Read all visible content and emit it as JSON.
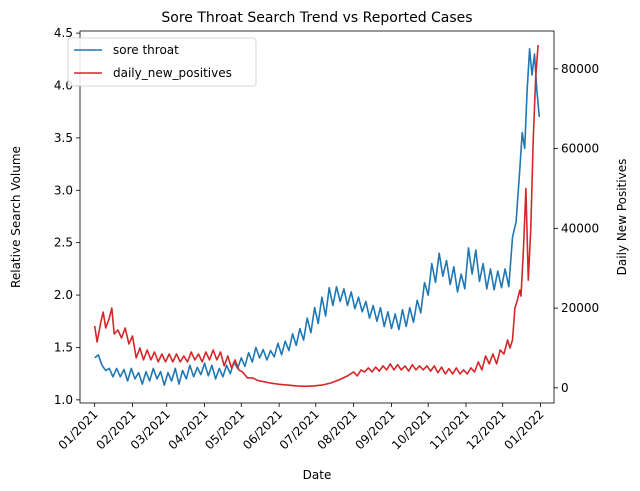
{
  "chart_data": {
    "type": "line",
    "title": "Sore Throat Search Trend vs Reported Cases",
    "xlabel": "Date",
    "ylabel_left": "Relative Search Volume",
    "ylabel_right": "Daily New Positives",
    "x_range": [
      "2020-12-20",
      "2022-01-12"
    ],
    "x_ticks": [
      {
        "date": "2021-01-01",
        "label": "01/2021"
      },
      {
        "date": "2021-02-01",
        "label": "02/2021"
      },
      {
        "date": "2021-03-01",
        "label": "03/2021"
      },
      {
        "date": "2021-04-01",
        "label": "04/2021"
      },
      {
        "date": "2021-05-01",
        "label": "05/2021"
      },
      {
        "date": "2021-06-01",
        "label": "06/2021"
      },
      {
        "date": "2021-07-01",
        "label": "07/2021"
      },
      {
        "date": "2021-08-01",
        "label": "08/2021"
      },
      {
        "date": "2021-09-01",
        "label": "09/2021"
      },
      {
        "date": "2021-10-01",
        "label": "10/2021"
      },
      {
        "date": "2021-11-01",
        "label": "11/2021"
      },
      {
        "date": "2021-12-01",
        "label": "12/2021"
      },
      {
        "date": "2022-01-01",
        "label": "01/2022"
      }
    ],
    "y_left": {
      "range": [
        0.97,
        4.52
      ],
      "ticks": [
        "1.0",
        "1.5",
        "2.0",
        "2.5",
        "3.0",
        "3.5",
        "4.0",
        "4.5"
      ]
    },
    "y_right": {
      "range": [
        -3800,
        89500
      ],
      "ticks": [
        "0",
        "20000",
        "40000",
        "60000",
        "80000"
      ]
    },
    "grid": false,
    "legend_position": "top-left",
    "series": [
      {
        "name": "sore throat",
        "axis": "left",
        "color": "#1f77b4",
        "points": [
          [
            "2021-01-01",
            1.4
          ],
          [
            "2021-01-04",
            1.43
          ],
          [
            "2021-01-07",
            1.33
          ],
          [
            "2021-01-10",
            1.28
          ],
          [
            "2021-01-13",
            1.3
          ],
          [
            "2021-01-16",
            1.22
          ],
          [
            "2021-01-19",
            1.3
          ],
          [
            "2021-01-22",
            1.22
          ],
          [
            "2021-01-25",
            1.29
          ],
          [
            "2021-01-28",
            1.18
          ],
          [
            "2021-01-31",
            1.3
          ],
          [
            "2021-02-03",
            1.2
          ],
          [
            "2021-02-06",
            1.26
          ],
          [
            "2021-02-09",
            1.15
          ],
          [
            "2021-02-12",
            1.27
          ],
          [
            "2021-02-15",
            1.18
          ],
          [
            "2021-02-18",
            1.3
          ],
          [
            "2021-02-21",
            1.2
          ],
          [
            "2021-02-24",
            1.27
          ],
          [
            "2021-02-27",
            1.14
          ],
          [
            "2021-03-02",
            1.26
          ],
          [
            "2021-03-05",
            1.18
          ],
          [
            "2021-03-08",
            1.3
          ],
          [
            "2021-03-11",
            1.15
          ],
          [
            "2021-03-14",
            1.28
          ],
          [
            "2021-03-17",
            1.2
          ],
          [
            "2021-03-20",
            1.33
          ],
          [
            "2021-03-23",
            1.22
          ],
          [
            "2021-03-26",
            1.31
          ],
          [
            "2021-03-29",
            1.24
          ],
          [
            "2021-04-01",
            1.35
          ],
          [
            "2021-04-04",
            1.23
          ],
          [
            "2021-04-07",
            1.33
          ],
          [
            "2021-04-10",
            1.2
          ],
          [
            "2021-04-13",
            1.3
          ],
          [
            "2021-04-16",
            1.22
          ],
          [
            "2021-04-19",
            1.33
          ],
          [
            "2021-04-22",
            1.25
          ],
          [
            "2021-04-25",
            1.36
          ],
          [
            "2021-04-28",
            1.3
          ],
          [
            "2021-05-01",
            1.4
          ],
          [
            "2021-05-04",
            1.32
          ],
          [
            "2021-05-07",
            1.45
          ],
          [
            "2021-05-10",
            1.36
          ],
          [
            "2021-05-13",
            1.5
          ],
          [
            "2021-05-16",
            1.4
          ],
          [
            "2021-05-19",
            1.48
          ],
          [
            "2021-05-22",
            1.38
          ],
          [
            "2021-05-25",
            1.47
          ],
          [
            "2021-05-28",
            1.41
          ],
          [
            "2021-05-31",
            1.54
          ],
          [
            "2021-06-03",
            1.43
          ],
          [
            "2021-06-06",
            1.56
          ],
          [
            "2021-06-09",
            1.47
          ],
          [
            "2021-06-12",
            1.63
          ],
          [
            "2021-06-15",
            1.52
          ],
          [
            "2021-06-18",
            1.68
          ],
          [
            "2021-06-21",
            1.57
          ],
          [
            "2021-06-24",
            1.78
          ],
          [
            "2021-06-27",
            1.64
          ],
          [
            "2021-06-30",
            1.88
          ],
          [
            "2021-07-03",
            1.73
          ],
          [
            "2021-07-06",
            1.98
          ],
          [
            "2021-07-09",
            1.8
          ],
          [
            "2021-07-12",
            2.07
          ],
          [
            "2021-07-15",
            1.9
          ],
          [
            "2021-07-18",
            2.08
          ],
          [
            "2021-07-21",
            1.94
          ],
          [
            "2021-07-24",
            2.06
          ],
          [
            "2021-07-27",
            1.9
          ],
          [
            "2021-07-30",
            2.03
          ],
          [
            "2021-08-02",
            1.87
          ],
          [
            "2021-08-05",
            1.98
          ],
          [
            "2021-08-08",
            1.84
          ],
          [
            "2021-08-11",
            1.94
          ],
          [
            "2021-08-14",
            1.78
          ],
          [
            "2021-08-17",
            1.9
          ],
          [
            "2021-08-20",
            1.75
          ],
          [
            "2021-08-23",
            1.88
          ],
          [
            "2021-08-26",
            1.7
          ],
          [
            "2021-08-29",
            1.84
          ],
          [
            "2021-09-01",
            1.68
          ],
          [
            "2021-09-04",
            1.82
          ],
          [
            "2021-09-07",
            1.67
          ],
          [
            "2021-09-10",
            1.86
          ],
          [
            "2021-09-13",
            1.7
          ],
          [
            "2021-09-16",
            1.88
          ],
          [
            "2021-09-19",
            1.74
          ],
          [
            "2021-09-22",
            1.95
          ],
          [
            "2021-09-25",
            1.83
          ],
          [
            "2021-09-28",
            2.12
          ],
          [
            "2021-10-01",
            2.0
          ],
          [
            "2021-10-04",
            2.3
          ],
          [
            "2021-10-07",
            2.12
          ],
          [
            "2021-10-10",
            2.4
          ],
          [
            "2021-10-13",
            2.18
          ],
          [
            "2021-10-16",
            2.33
          ],
          [
            "2021-10-19",
            2.1
          ],
          [
            "2021-10-22",
            2.27
          ],
          [
            "2021-10-25",
            2.03
          ],
          [
            "2021-10-28",
            2.2
          ],
          [
            "2021-10-31",
            2.06
          ],
          [
            "2021-11-03",
            2.45
          ],
          [
            "2021-11-06",
            2.2
          ],
          [
            "2021-11-09",
            2.43
          ],
          [
            "2021-11-12",
            2.13
          ],
          [
            "2021-11-15",
            2.3
          ],
          [
            "2021-11-18",
            2.06
          ],
          [
            "2021-11-21",
            2.25
          ],
          [
            "2021-11-24",
            2.05
          ],
          [
            "2021-11-27",
            2.23
          ],
          [
            "2021-11-30",
            2.07
          ],
          [
            "2021-12-03",
            2.25
          ],
          [
            "2021-12-06",
            2.08
          ],
          [
            "2021-12-09",
            2.55
          ],
          [
            "2021-12-12",
            2.7
          ],
          [
            "2021-12-15",
            3.2
          ],
          [
            "2021-12-17",
            3.55
          ],
          [
            "2021-12-19",
            3.4
          ],
          [
            "2021-12-21",
            3.95
          ],
          [
            "2021-12-23",
            4.35
          ],
          [
            "2021-12-25",
            4.1
          ],
          [
            "2021-12-27",
            4.3
          ],
          [
            "2021-12-29",
            3.95
          ],
          [
            "2021-12-31",
            3.7
          ]
        ]
      },
      {
        "name": "daily_new_positives",
        "axis": "right",
        "color": "#d62728",
        "points": [
          [
            "2021-01-01",
            15500
          ],
          [
            "2021-01-03",
            11500
          ],
          [
            "2021-01-06",
            16500
          ],
          [
            "2021-01-08",
            19000
          ],
          [
            "2021-01-10",
            15000
          ],
          [
            "2021-01-13",
            17500
          ],
          [
            "2021-01-15",
            20000
          ],
          [
            "2021-01-17",
            13500
          ],
          [
            "2021-01-20",
            14500
          ],
          [
            "2021-01-23",
            12500
          ],
          [
            "2021-01-26",
            15000
          ],
          [
            "2021-01-29",
            11000
          ],
          [
            "2021-02-01",
            13000
          ],
          [
            "2021-02-04",
            7500
          ],
          [
            "2021-02-07",
            10000
          ],
          [
            "2021-02-10",
            7000
          ],
          [
            "2021-02-13",
            9500
          ],
          [
            "2021-02-16",
            7000
          ],
          [
            "2021-02-19",
            9000
          ],
          [
            "2021-02-22",
            6500
          ],
          [
            "2021-02-25",
            8500
          ],
          [
            "2021-02-28",
            6500
          ],
          [
            "2021-03-03",
            8500
          ],
          [
            "2021-03-06",
            6500
          ],
          [
            "2021-03-09",
            8500
          ],
          [
            "2021-03-12",
            6500
          ],
          [
            "2021-03-15",
            8000
          ],
          [
            "2021-03-18",
            6500
          ],
          [
            "2021-03-21",
            9000
          ],
          [
            "2021-03-24",
            7000
          ],
          [
            "2021-03-27",
            8500
          ],
          [
            "2021-03-30",
            6500
          ],
          [
            "2021-04-02",
            9000
          ],
          [
            "2021-04-05",
            7000
          ],
          [
            "2021-04-08",
            9500
          ],
          [
            "2021-04-11",
            7000
          ],
          [
            "2021-04-14",
            9000
          ],
          [
            "2021-04-17",
            5500
          ],
          [
            "2021-04-20",
            8000
          ],
          [
            "2021-04-23",
            5000
          ],
          [
            "2021-04-26",
            7000
          ],
          [
            "2021-04-29",
            4500
          ],
          [
            "2021-05-02",
            4000
          ],
          [
            "2021-05-06",
            2500
          ],
          [
            "2021-05-10",
            2500
          ],
          [
            "2021-05-15",
            1800
          ],
          [
            "2021-05-20",
            1500
          ],
          [
            "2021-05-25",
            1200
          ],
          [
            "2021-06-01",
            900
          ],
          [
            "2021-06-08",
            700
          ],
          [
            "2021-06-15",
            500
          ],
          [
            "2021-06-22",
            400
          ],
          [
            "2021-06-29",
            500
          ],
          [
            "2021-07-06",
            700
          ],
          [
            "2021-07-13",
            1200
          ],
          [
            "2021-07-20",
            2000
          ],
          [
            "2021-07-27",
            3000
          ],
          [
            "2021-08-01",
            4000
          ],
          [
            "2021-08-04",
            3000
          ],
          [
            "2021-08-07",
            4500
          ],
          [
            "2021-08-10",
            4000
          ],
          [
            "2021-08-13",
            5000
          ],
          [
            "2021-08-16",
            4000
          ],
          [
            "2021-08-19",
            5200
          ],
          [
            "2021-08-22",
            4200
          ],
          [
            "2021-08-25",
            5500
          ],
          [
            "2021-08-28",
            4500
          ],
          [
            "2021-08-31",
            6000
          ],
          [
            "2021-09-03",
            4500
          ],
          [
            "2021-09-06",
            5800
          ],
          [
            "2021-09-09",
            4500
          ],
          [
            "2021-09-12",
            5500
          ],
          [
            "2021-09-15",
            4200
          ],
          [
            "2021-09-18",
            5800
          ],
          [
            "2021-09-21",
            4500
          ],
          [
            "2021-09-24",
            5500
          ],
          [
            "2021-09-27",
            4500
          ],
          [
            "2021-09-30",
            5500
          ],
          [
            "2021-10-03",
            4200
          ],
          [
            "2021-10-06",
            5500
          ],
          [
            "2021-10-09",
            3800
          ],
          [
            "2021-10-12",
            5200
          ],
          [
            "2021-10-15",
            3500
          ],
          [
            "2021-10-18",
            4800
          ],
          [
            "2021-10-21",
            3500
          ],
          [
            "2021-10-24",
            5000
          ],
          [
            "2021-10-27",
            3500
          ],
          [
            "2021-10-30",
            4500
          ],
          [
            "2021-11-02",
            3500
          ],
          [
            "2021-11-05",
            5000
          ],
          [
            "2021-11-08",
            4000
          ],
          [
            "2021-11-11",
            6500
          ],
          [
            "2021-11-14",
            4500
          ],
          [
            "2021-11-17",
            8000
          ],
          [
            "2021-11-20",
            6000
          ],
          [
            "2021-11-23",
            8500
          ],
          [
            "2021-11-26",
            6000
          ],
          [
            "2021-11-29",
            9500
          ],
          [
            "2021-12-02",
            8500
          ],
          [
            "2021-12-05",
            12000
          ],
          [
            "2021-12-07",
            10000
          ],
          [
            "2021-12-09",
            12000
          ],
          [
            "2021-12-11",
            20000
          ],
          [
            "2021-12-13",
            22000
          ],
          [
            "2021-12-15",
            24500
          ],
          [
            "2021-12-16",
            23000
          ],
          [
            "2021-12-18",
            35000
          ],
          [
            "2021-12-20",
            50000
          ],
          [
            "2021-12-22",
            27000
          ],
          [
            "2021-12-24",
            40000
          ],
          [
            "2021-12-26",
            62000
          ],
          [
            "2021-12-28",
            78000
          ],
          [
            "2021-12-30",
            86000
          ]
        ]
      }
    ]
  }
}
